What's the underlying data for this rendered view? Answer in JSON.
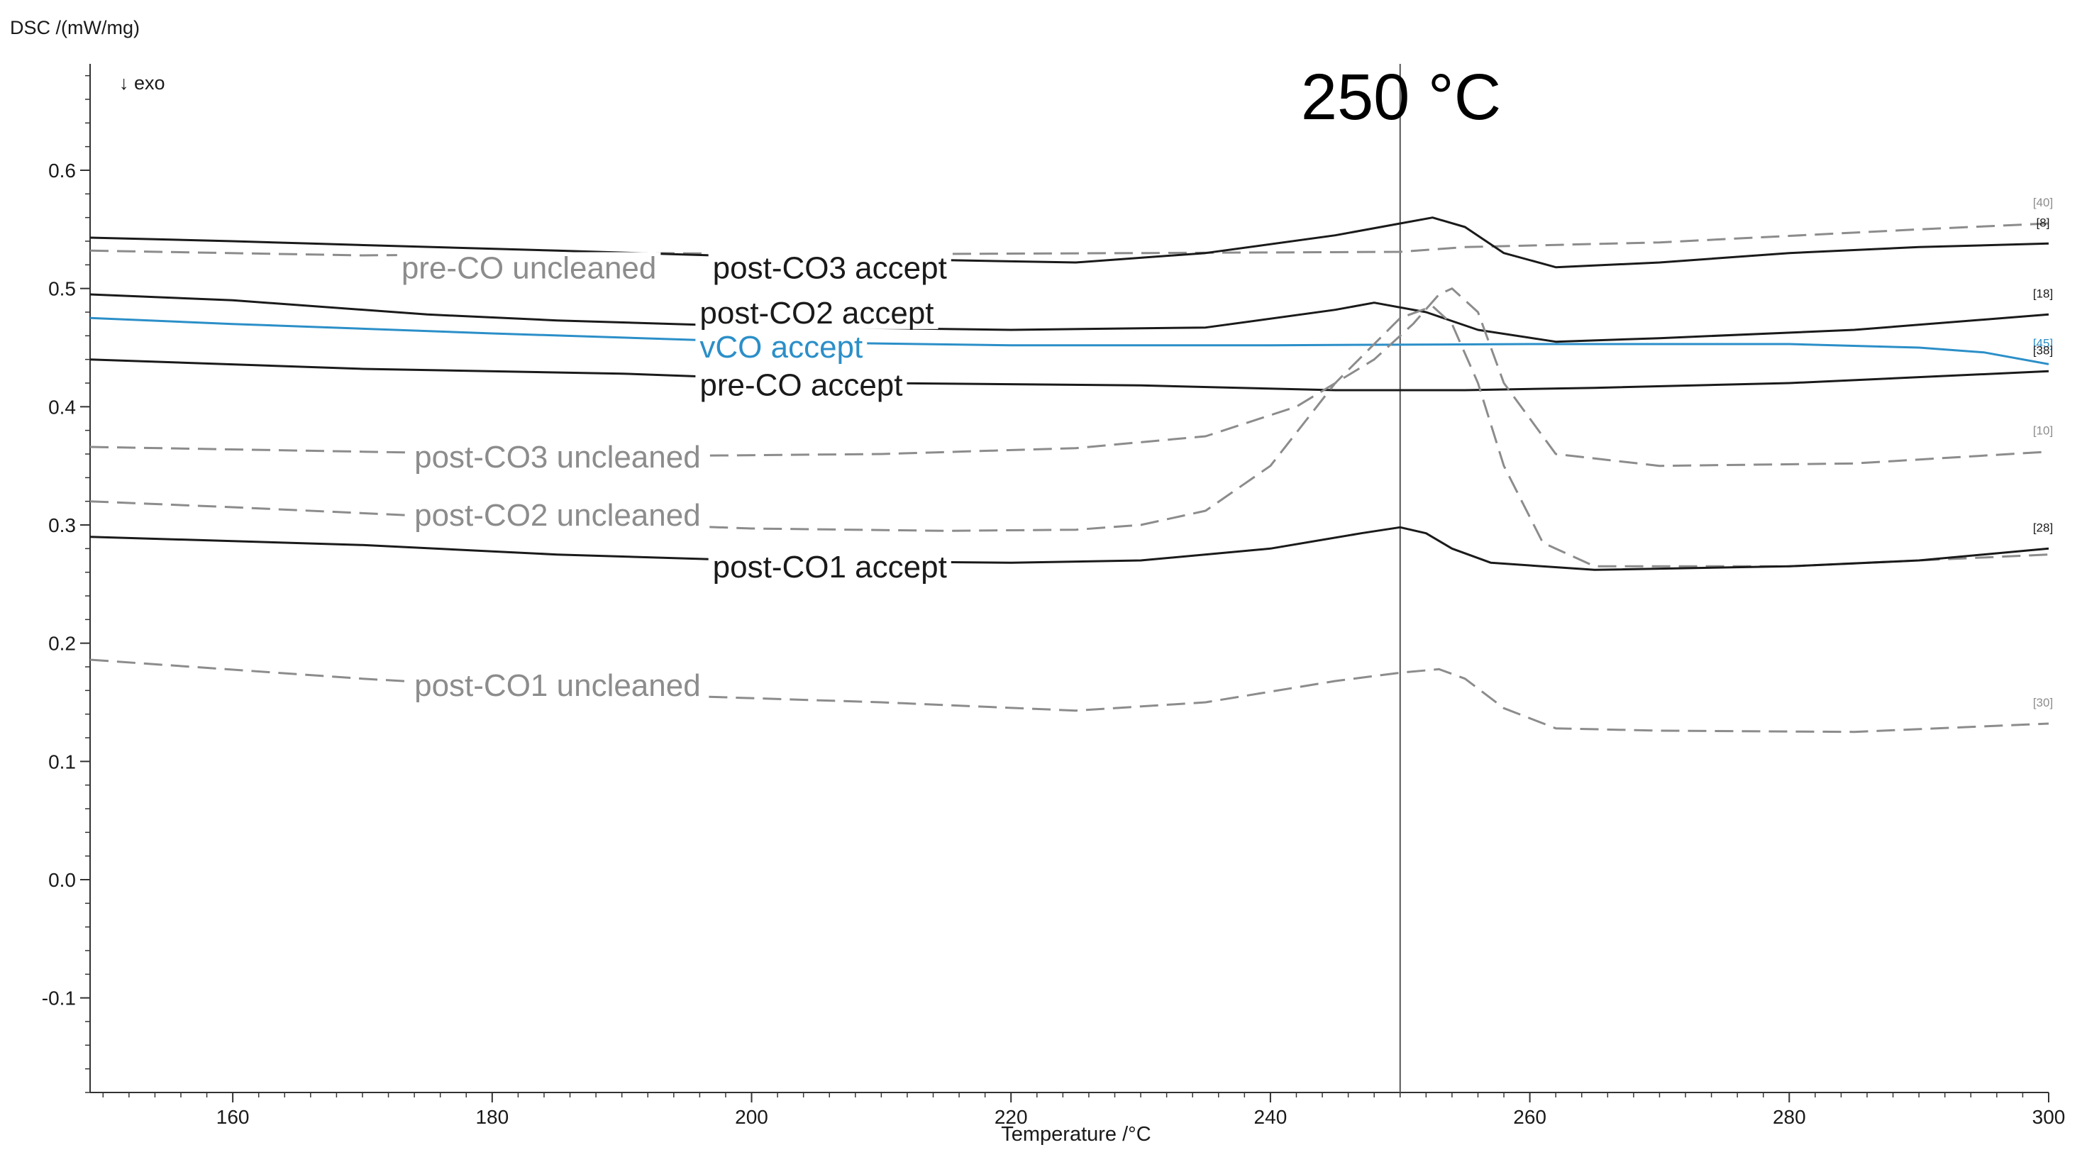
{
  "chart_data": {
    "type": "line",
    "ylabel": "DSC /(mW/mg)",
    "xlabel": "Temperature /°C",
    "exo_label": "↓ exo",
    "marker_label": "250 °C",
    "marker_x": 250,
    "xlim": [
      149,
      300
    ],
    "ylim": [
      -0.18,
      0.69
    ],
    "xticks": [
      160,
      180,
      200,
      220,
      240,
      260,
      280,
      300
    ],
    "yticks": [
      -0.1,
      0.0,
      0.1,
      0.2,
      0.3,
      0.4,
      0.5,
      0.6
    ],
    "series": [
      {
        "name": "pre-CO uncleaned",
        "color": "#8c8c8c",
        "dashed": true,
        "end_tag": "[40]",
        "label_pos": [
          173,
          0.518
        ],
        "x": [
          149,
          170,
          190,
          210,
          230,
          250,
          255,
          270,
          290,
          300
        ],
        "y": [
          0.532,
          0.528,
          0.53,
          0.529,
          0.53,
          0.531,
          0.535,
          0.539,
          0.55,
          0.555
        ]
      },
      {
        "name": "post-CO3 accept",
        "color": "#1a1a1a",
        "dashed": false,
        "end_tag": "[8]",
        "label_pos": [
          197,
          0.518
        ],
        "x": [
          149,
          160,
          166,
          185,
          200,
          225,
          235,
          245,
          250,
          252.5,
          255,
          258,
          262,
          270,
          280,
          290,
          300
        ],
        "y": [
          0.543,
          0.54,
          0.538,
          0.532,
          0.527,
          0.522,
          0.53,
          0.545,
          0.555,
          0.56,
          0.552,
          0.53,
          0.518,
          0.522,
          0.53,
          0.535,
          0.538
        ]
      },
      {
        "name": "post-CO2 accept",
        "color": "#1a1a1a",
        "dashed": false,
        "end_tag": "[18]",
        "label_pos": [
          196,
          0.48
        ],
        "x": [
          149,
          160,
          175,
          185,
          200,
          220,
          235,
          245,
          248,
          252,
          256,
          262,
          270,
          285,
          300
        ],
        "y": [
          0.495,
          0.49,
          0.478,
          0.473,
          0.468,
          0.465,
          0.467,
          0.482,
          0.488,
          0.48,
          0.465,
          0.455,
          0.458,
          0.465,
          0.478
        ]
      },
      {
        "name": "vCO accept",
        "color": "#2b8fc8",
        "dashed": false,
        "end_tag": "[45]",
        "label_pos": [
          196,
          0.451
        ],
        "x": [
          149,
          160,
          180,
          200,
          220,
          240,
          260,
          280,
          290,
          295,
          300
        ],
        "y": [
          0.475,
          0.47,
          0.462,
          0.455,
          0.452,
          0.452,
          0.453,
          0.453,
          0.45,
          0.446,
          0.436
        ]
      },
      {
        "name": "pre-CO accept",
        "color": "#1a1a1a",
        "dashed": false,
        "end_tag": "[38]",
        "label_pos": [
          196,
          0.419
        ],
        "x": [
          149,
          170,
          190,
          210,
          230,
          245,
          255,
          265,
          280,
          300
        ],
        "y": [
          0.44,
          0.432,
          0.428,
          0.42,
          0.418,
          0.414,
          0.414,
          0.416,
          0.42,
          0.43
        ]
      },
      {
        "name": "post-CO3 uncleaned",
        "color": "#8c8c8c",
        "dashed": true,
        "end_tag": "[10]",
        "label_pos": [
          174,
          0.358
        ],
        "x": [
          149,
          170,
          190,
          210,
          225,
          235,
          242,
          248,
          251,
          253,
          254,
          256,
          258,
          262,
          270,
          285,
          300
        ],
        "y": [
          0.366,
          0.362,
          0.358,
          0.36,
          0.365,
          0.375,
          0.4,
          0.44,
          0.47,
          0.495,
          0.5,
          0.48,
          0.42,
          0.36,
          0.35,
          0.352,
          0.362
        ]
      },
      {
        "name": "post-CO2 uncleaned",
        "color": "#8c8c8c",
        "dashed": true,
        "end_tag": "",
        "label_pos": [
          174,
          0.309
        ],
        "x": [
          149,
          160,
          180,
          200,
          215,
          225,
          230,
          235,
          240,
          245,
          250,
          252.5,
          254,
          256,
          258,
          261,
          265,
          280,
          300
        ],
        "y": [
          0.32,
          0.315,
          0.305,
          0.297,
          0.295,
          0.296,
          0.3,
          0.312,
          0.35,
          0.42,
          0.475,
          0.485,
          0.47,
          0.42,
          0.35,
          0.285,
          0.265,
          0.265,
          0.275
        ]
      },
      {
        "name": "post-CO1 accept",
        "color": "#1a1a1a",
        "dashed": false,
        "end_tag": "[28]",
        "label_pos": [
          197,
          0.265
        ],
        "x": [
          149,
          170,
          185,
          200,
          220,
          230,
          240,
          247,
          250,
          252,
          254,
          257,
          265,
          280,
          290,
          300
        ],
        "y": [
          0.29,
          0.283,
          0.275,
          0.27,
          0.268,
          0.27,
          0.28,
          0.293,
          0.298,
          0.293,
          0.28,
          0.268,
          0.262,
          0.265,
          0.27,
          0.28
        ]
      },
      {
        "name": "post-CO1 uncleaned",
        "color": "#8c8c8c",
        "dashed": true,
        "end_tag": "[30]",
        "label_pos": [
          174,
          0.165
        ],
        "x": [
          149,
          170,
          190,
          210,
          225,
          235,
          245,
          250,
          253,
          255,
          258,
          262,
          270,
          285,
          300
        ],
        "y": [
          0.186,
          0.17,
          0.157,
          0.15,
          0.143,
          0.15,
          0.168,
          0.175,
          0.178,
          0.17,
          0.145,
          0.128,
          0.126,
          0.125,
          0.132
        ]
      }
    ]
  }
}
